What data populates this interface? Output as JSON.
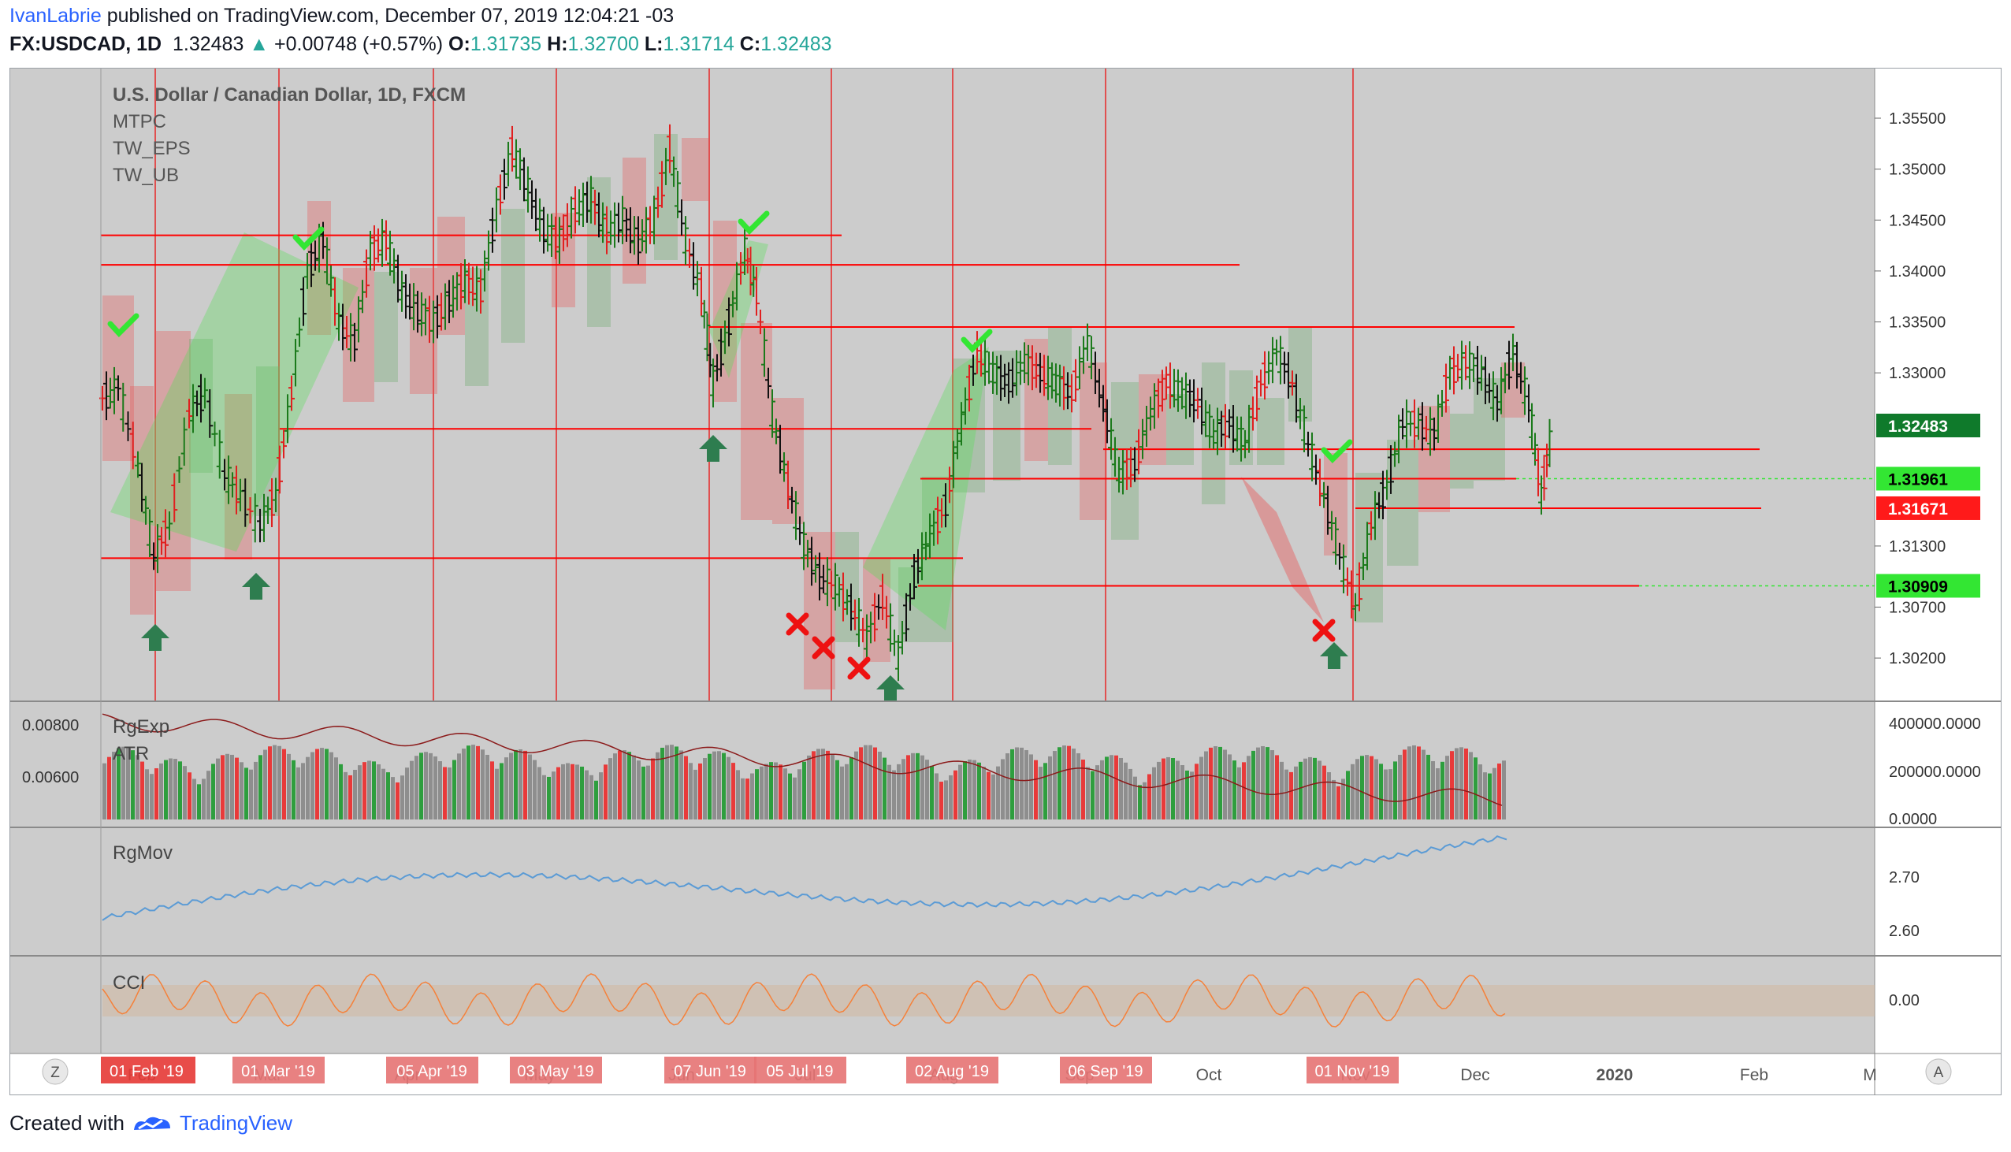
{
  "header": {
    "author": "IvanLabrie",
    "published_text": "published on TradingView.com, December 07, 2019 12:04:21 -03",
    "symbol": "FX:USDCAD, 1D",
    "last": "1.32483",
    "change_arrow": "▲",
    "change": "+0.00748 (+0.57%)",
    "o_label": "O:",
    "o_value": "1.31735",
    "h_label": "H:",
    "h_value": "1.32700",
    "l_label": "L:",
    "l_value": "1.31714",
    "c_label": "C:",
    "c_value": "1.32483"
  },
  "legend": {
    "title": "U.S. Dollar / Canadian Dollar, 1D, FXCM",
    "indicators": [
      "MTPC",
      "TW_EPS",
      "TW_UB"
    ]
  },
  "panes": {
    "volume": {
      "labels": [
        "RgExp",
        "ATR"
      ],
      "left_ticks": [
        "0.00800",
        "0.00600"
      ],
      "right_ticks": [
        "400000.0000",
        "200000.0000",
        "0.0000"
      ]
    },
    "rgmov": {
      "label": "RgMov",
      "right_ticks": [
        "2.70",
        "2.60"
      ]
    },
    "cci": {
      "label": "CCI",
      "right_ticks": [
        "0.00"
      ]
    }
  },
  "price_axis": {
    "ticks": [
      "1.35500",
      "1.35000",
      "1.34500",
      "1.34000",
      "1.33500",
      "1.33000",
      "1.31300",
      "1.30700",
      "1.30200"
    ],
    "badges": [
      {
        "value": "1.32483",
        "color": "#0f7a2b",
        "text_color": "#ffffff"
      },
      {
        "value": "1.31961",
        "color": "#33e633",
        "text_color": "#000000"
      },
      {
        "value": "1.31671",
        "color": "#ff1a1a",
        "text_color": "#ffffff"
      },
      {
        "value": "1.30909",
        "color": "#33e633",
        "text_color": "#000000"
      }
    ]
  },
  "time_axis": {
    "labels": [
      "Feb",
      "Mar",
      "Apr",
      "May",
      "Jun",
      "Jul",
      "Aug",
      "Sep",
      "Oct",
      "Nov",
      "Dec",
      "2020",
      "Feb",
      "M"
    ],
    "highlighted": [
      "01 Feb '19",
      "01 Mar '19",
      "05 Apr '19",
      "03 May '19",
      "07 Jun '19",
      "05 Jul '19",
      "02 Aug '19",
      "06 Sep '19",
      "01 Nov '19"
    ],
    "left_button": "Z",
    "right_button": "A"
  },
  "colors": {
    "background": "#cccccc",
    "up_bar": "#1b7a1b",
    "down_bar": "#e02020",
    "level_line": "#ff0000",
    "rgmov_line": "#5b9bd5",
    "cci_line": "#f5813a"
  },
  "footer": {
    "created_with": "Created with",
    "brand": "TradingView"
  }
}
